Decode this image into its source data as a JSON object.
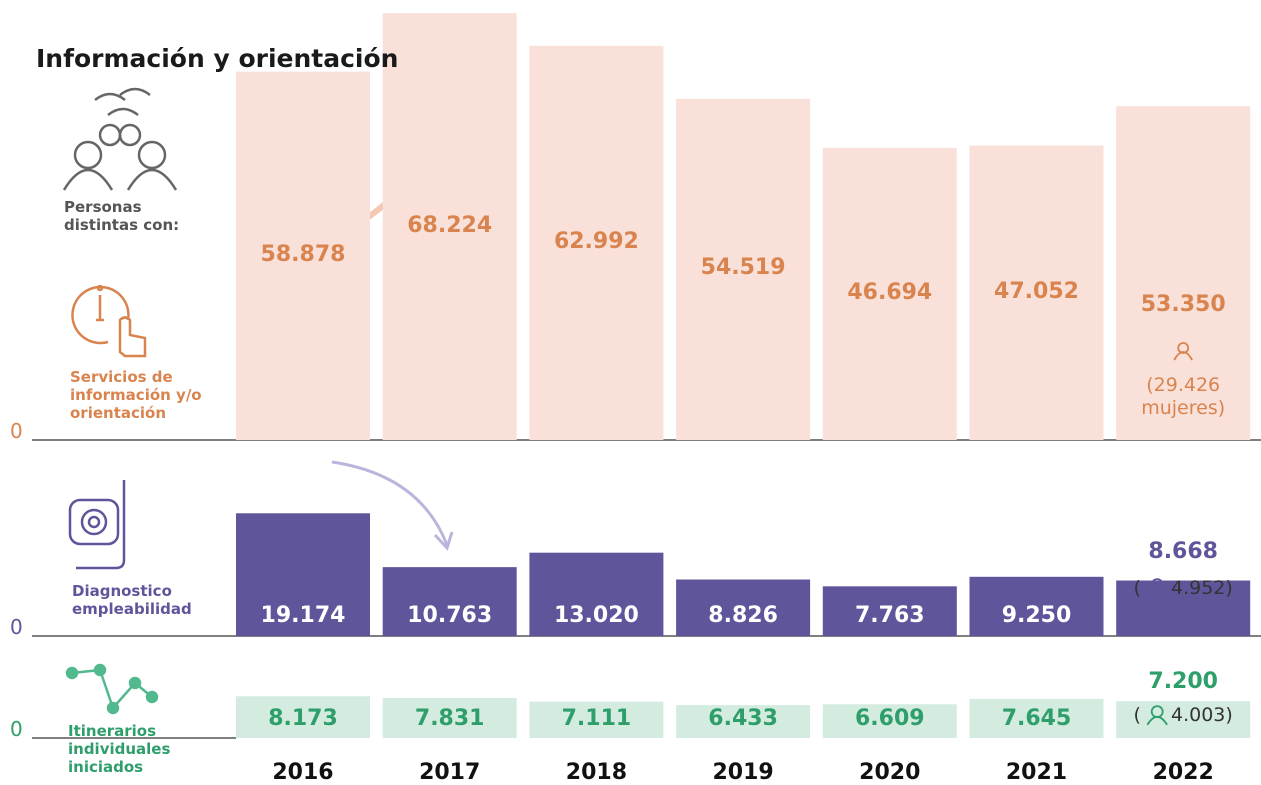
{
  "title": "Información y orientación",
  "subtitle": "Personas distintas con:",
  "chart_data": [
    {
      "type": "bar",
      "label": "Servicios de información y/o orientación",
      "categories": [
        "2016",
        "2017",
        "2018",
        "2019",
        "2020",
        "2021",
        "2022"
      ],
      "values": [
        58878,
        68224,
        62992,
        54519,
        46694,
        47052,
        53350
      ],
      "value_labels": [
        "58.878",
        "68.224",
        "62.992",
        "54.519",
        "46.694",
        "47.052",
        "53.350"
      ],
      "annotation": "(29.426 mujeres)",
      "color": "#f9e0d8",
      "label_color": "#d9844f",
      "ylim": [
        0,
        70000
      ],
      "yticks": [
        0
      ]
    },
    {
      "type": "bar",
      "label": "Diagnostico empleabilidad",
      "values": [
        19174,
        10763,
        13020,
        8826,
        7763,
        9250,
        8668
      ],
      "value_labels": [
        "19.174",
        "10.763",
        "13.020",
        "8.826",
        "7.763",
        "9.250",
        "8.668"
      ],
      "annotation": "( 4.952)",
      "color": "#5f559b",
      "label_color": "#5f559b",
      "ylim": [
        0,
        20000
      ],
      "yticks": [
        0
      ]
    },
    {
      "type": "bar",
      "label": "Itinerarios individuales iniciados",
      "values": [
        8173,
        7831,
        7111,
        6433,
        6609,
        7645,
        7200
      ],
      "value_labels": [
        "8.173",
        "7.831",
        "7.111",
        "6.433",
        "6.609",
        "7.645",
        "7.200"
      ],
      "annotation": "( 4.003)",
      "color": "#d4ebe0",
      "label_color": "#2e9e6b",
      "ylim": [
        0,
        9000
      ],
      "yticks": [
        0
      ]
    }
  ]
}
